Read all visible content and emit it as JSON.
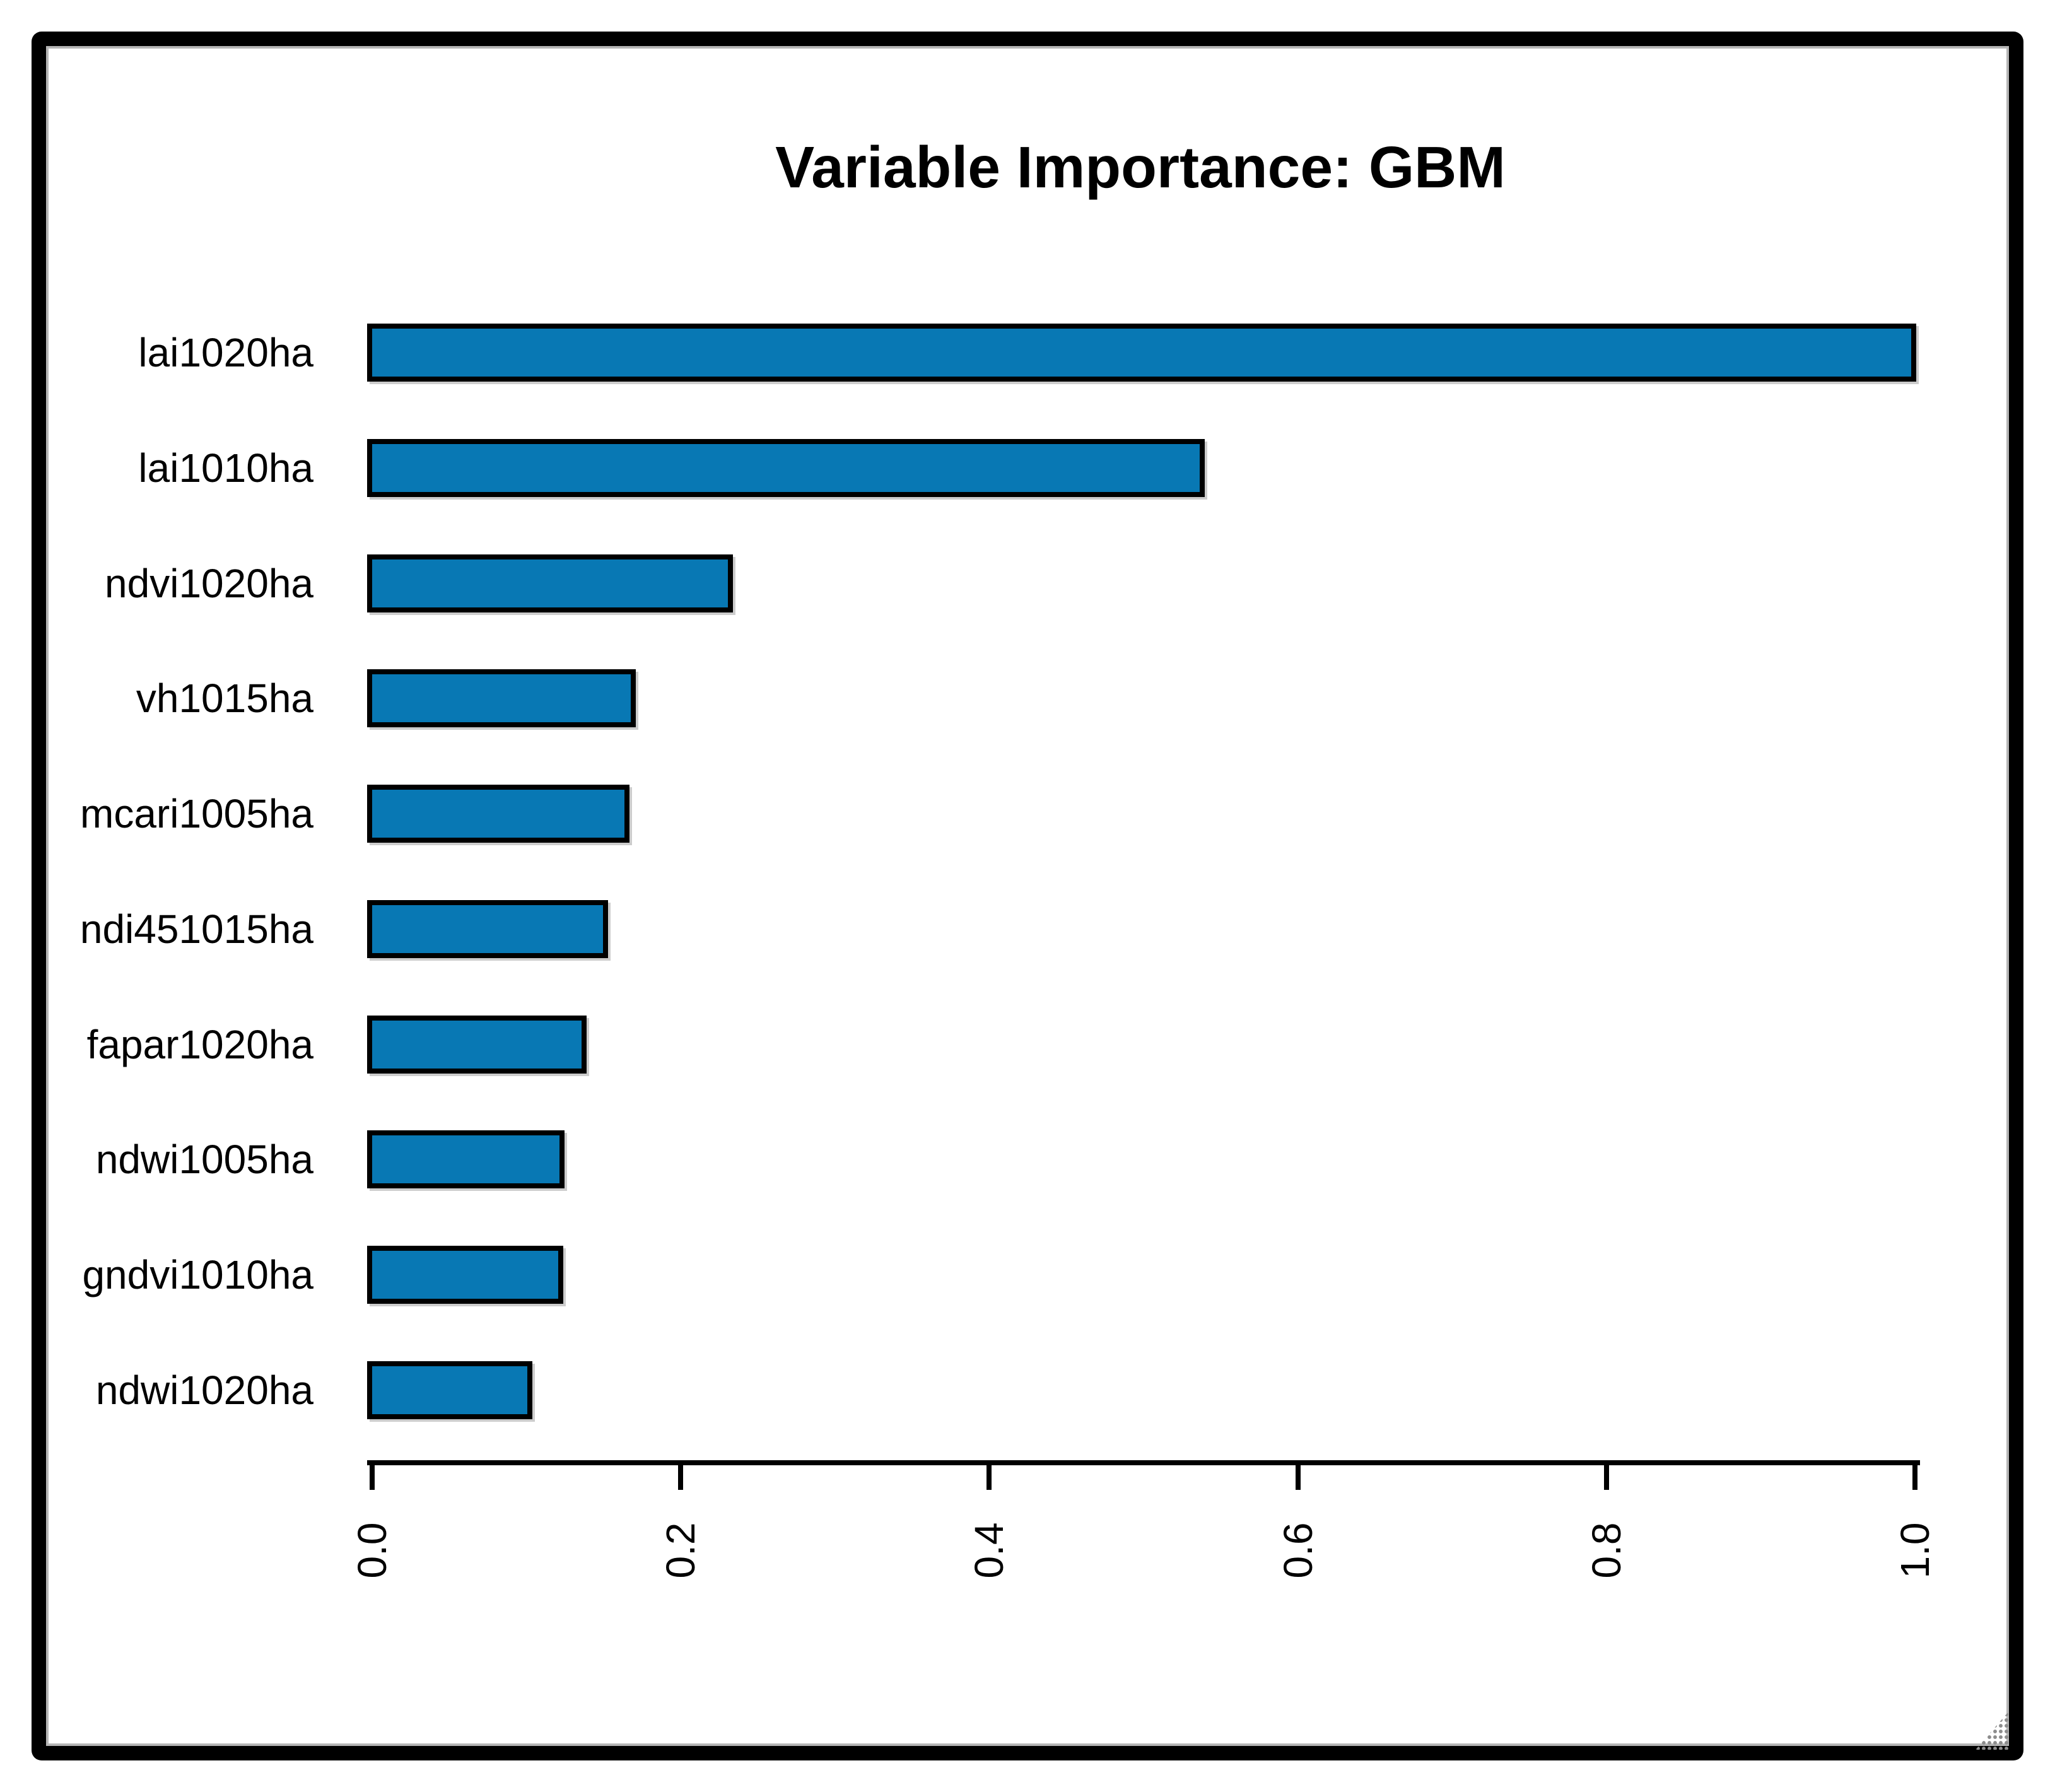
{
  "chart_data": {
    "type": "bar",
    "orientation": "horizontal",
    "title": "Variable Importance: GBM",
    "categories": [
      "lai1020ha",
      "lai1010ha",
      "ndvi1020ha",
      "vh1015ha",
      "mcari1005ha",
      "ndi451015ha",
      "fapar1020ha",
      "ndwi1005ha",
      "gndvi1010ha",
      "ndwi1020ha"
    ],
    "values": [
      1.0,
      0.539,
      0.233,
      0.17,
      0.166,
      0.152,
      0.138,
      0.124,
      0.123,
      0.103
    ],
    "xlabel": "",
    "ylabel": "",
    "xlim": [
      0.0,
      1.0
    ],
    "x_ticks": [
      "0.0",
      "0.2",
      "0.4",
      "0.6",
      "0.8",
      "1.0"
    ],
    "x_tick_label_rotation_deg": -90,
    "grid": false,
    "legend_position": "none",
    "bar_color": "#0878b4",
    "bar_border_color": "#000000",
    "background_color": "#ffffff",
    "frame_color": "#000000"
  },
  "window": {
    "resize_grip_icon": "resize-grip"
  }
}
